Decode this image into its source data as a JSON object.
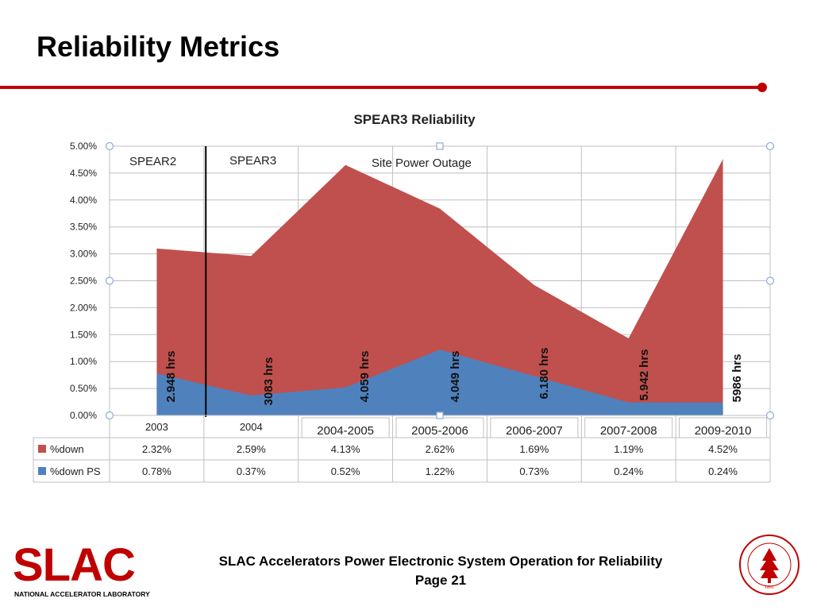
{
  "slide": {
    "title": "Reliability Metrics",
    "footer_line1": "SLAC Accelerators Power Electronic System Operation for Reliability",
    "footer_line2": "Page 21"
  },
  "logo": {
    "wordmark": "SLAC",
    "subtitle": "NATIONAL ACCELERATOR LABORATORY",
    "color": "#c00000"
  },
  "seal": {
    "text": "LELAND STANFORD JUNIOR UNIVERSITY",
    "year": "1891",
    "color": "#c00000"
  },
  "colors": {
    "accent": "#c00000",
    "series_down": "#c0504d",
    "series_ps": "#4f81bd"
  },
  "chart_data": {
    "type": "area",
    "title": "SPEAR3 Reliability",
    "categories": [
      "2003",
      "2004",
      "2004-2005",
      "2005-2006",
      "2006-2007",
      "2007-2008",
      "2009-2010"
    ],
    "series": [
      {
        "name": "%down",
        "color": "#c0504d",
        "values": [
          2.32,
          2.59,
          4.13,
          2.62,
          1.69,
          1.19,
          4.52
        ],
        "labels": [
          "2.32%",
          "2.59%",
          "4.13%",
          "2.62%",
          "1.69%",
          "1.19%",
          "4.52%"
        ]
      },
      {
        "name": "%down PS",
        "color": "#4f81bd",
        "values": [
          0.78,
          0.37,
          0.52,
          1.22,
          0.73,
          0.24,
          0.24
        ],
        "labels": [
          "0.78%",
          "0.37%",
          "0.52%",
          "1.22%",
          "0.73%",
          "0.24%",
          "0.24%"
        ]
      }
    ],
    "stacked": true,
    "ylim": [
      0,
      5
    ],
    "yticks": [
      "0.00%",
      "0.50%",
      "1.00%",
      "1.50%",
      "2.00%",
      "2.50%",
      "3.00%",
      "3.50%",
      "4.00%",
      "4.50%",
      "5.00%"
    ],
    "grid": true,
    "legend": "data-table",
    "annotations": [
      {
        "text": "SPEAR2",
        "category": 0
      },
      {
        "text": "SPEAR3",
        "category": 1
      },
      {
        "text": "Site Power Outage",
        "category": 3
      }
    ],
    "hours_labels": [
      "2.948 hrs",
      "3083 hrs",
      "4.059 hrs",
      "4.049 hrs",
      "6.180 hrs",
      "5.942 hrs",
      "5986 hrs"
    ]
  }
}
